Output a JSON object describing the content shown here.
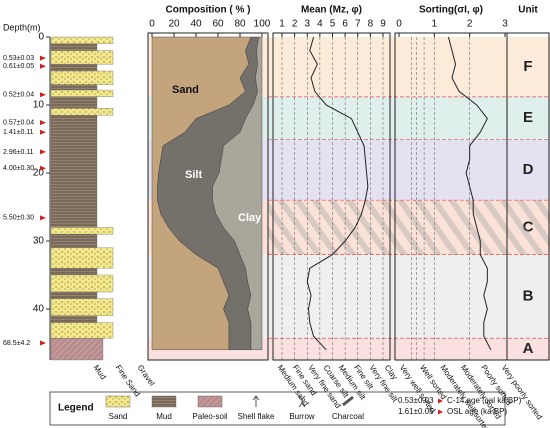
{
  "depth_axis": {
    "label": "Depth(m)",
    "lim": [
      0,
      47.5
    ],
    "ticks": [
      0,
      10,
      20,
      30,
      40
    ]
  },
  "unit_header": "Unit",
  "units": [
    {
      "label": "F",
      "top": 0,
      "bottom": 8.8,
      "color": "#fcebd9"
    },
    {
      "label": "E",
      "top": 8.8,
      "bottom": 15.1,
      "color": "#dff0ec"
    },
    {
      "label": "D",
      "top": 15.1,
      "bottom": 24,
      "color": "#e4e1f1"
    },
    {
      "label": "C",
      "top": 24,
      "bottom": 32,
      "color": "#fbe2d9"
    },
    {
      "label": "B",
      "top": 32,
      "bottom": 44.3,
      "color": "#efefef"
    },
    {
      "label": "A",
      "top": 44.3,
      "bottom": 47.5,
      "color": "#fbe0e0"
    }
  ],
  "lithology": {
    "scale_labels": [
      "Mud",
      "Fine Sand",
      "Gravel"
    ],
    "layers": [
      {
        "type": "Sand",
        "top": 0,
        "bottom": 1
      },
      {
        "type": "Mud",
        "top": 1,
        "bottom": 2
      },
      {
        "type": "Sand",
        "top": 2,
        "bottom": 4
      },
      {
        "type": "Mud",
        "top": 4,
        "bottom": 5
      },
      {
        "type": "Sand",
        "top": 5,
        "bottom": 7
      },
      {
        "type": "Mud",
        "top": 7,
        "bottom": 7.8
      },
      {
        "type": "Sand",
        "top": 7.8,
        "bottom": 8.8
      },
      {
        "type": "Mud",
        "top": 8.8,
        "bottom": 10.5
      },
      {
        "type": "Sand",
        "top": 10.5,
        "bottom": 11.5
      },
      {
        "type": "Mud",
        "top": 11.5,
        "bottom": 28
      },
      {
        "type": "Sand",
        "top": 28,
        "bottom": 29
      },
      {
        "type": "Mud",
        "top": 29,
        "bottom": 31
      },
      {
        "type": "Sand",
        "top": 31,
        "bottom": 34
      },
      {
        "type": "Mud",
        "top": 34,
        "bottom": 35
      },
      {
        "type": "Sand",
        "top": 35,
        "bottom": 37.5
      },
      {
        "type": "Mud",
        "top": 37.5,
        "bottom": 38.5
      },
      {
        "type": "Sand",
        "top": 38.5,
        "bottom": 41
      },
      {
        "type": "Mud",
        "top": 41,
        "bottom": 42
      },
      {
        "type": "Sand",
        "top": 42,
        "bottom": 44.3
      },
      {
        "type": "Paleo-soil",
        "top": 44.3,
        "bottom": 47.5
      }
    ]
  },
  "ages": [
    {
      "label": "0.53±0.03",
      "depth": 3.1
    },
    {
      "label": "0.61±0.05",
      "depth": 4.3
    },
    {
      "label": "0.52±0.04",
      "depth": 8.5
    },
    {
      "label": "0.57±0.04",
      "depth": 12.6
    },
    {
      "label": "1.41±0.11",
      "depth": 14
    },
    {
      "label": "2.96±0.11",
      "depth": 16.9
    },
    {
      "label": "4.00±0.30",
      "depth": 19.3
    },
    {
      "label": "5.50±0.30",
      "depth": 26.6
    },
    {
      "label": "68.5±4.2",
      "depth": 45
    }
  ],
  "chart_data": [
    {
      "type": "area",
      "title": "Composition ( % )",
      "xlim": [
        0,
        100
      ],
      "xticks": [
        0,
        20,
        40,
        60,
        80,
        100
      ],
      "depth": [
        0,
        2,
        4,
        6,
        8,
        10,
        12,
        14,
        16,
        18,
        20,
        22,
        24,
        26,
        28,
        30,
        32,
        34,
        36,
        38,
        40,
        42,
        44,
        46
      ],
      "series": [
        {
          "name": "Sand",
          "color": "#c4a47c",
          "values": [
            90,
            85,
            88,
            80,
            85,
            70,
            40,
            30,
            10,
            8,
            6,
            5,
            5,
            8,
            15,
            25,
            40,
            60,
            65,
            70,
            65,
            70,
            70,
            70
          ]
        },
        {
          "name": "Silt",
          "color": "#74706a",
          "values": [
            7,
            10,
            8,
            14,
            11,
            22,
            45,
            50,
            55,
            55,
            55,
            50,
            50,
            50,
            50,
            50,
            40,
            25,
            22,
            20,
            22,
            20,
            20,
            20
          ]
        },
        {
          "name": "Clay",
          "color": "#a9a79c",
          "values": [
            3,
            5,
            4,
            6,
            4,
            8,
            15,
            20,
            35,
            37,
            39,
            45,
            45,
            42,
            35,
            25,
            20,
            15,
            13,
            10,
            13,
            10,
            10,
            10
          ]
        }
      ]
    },
    {
      "type": "line",
      "title": "Mean (Mz, φ)",
      "xlim": [
        1,
        9
      ],
      "xticks": [
        1,
        2,
        3,
        4,
        5,
        6,
        7,
        8,
        9
      ],
      "grid": true,
      "color": "#222",
      "depth": [
        0,
        2,
        4,
        6,
        8,
        10,
        12,
        14,
        16,
        18,
        20,
        22,
        24,
        26,
        28,
        30,
        32,
        34,
        36,
        38,
        40,
        42,
        44,
        46
      ],
      "values": [
        3.5,
        3.2,
        3.8,
        3.3,
        3.6,
        4.5,
        6.5,
        7,
        7.5,
        7.6,
        7.7,
        7.8,
        7.6,
        7.3,
        6.8,
        6,
        5,
        3.2,
        3,
        3.3,
        3.1,
        3.2,
        3.5,
        4.5
      ],
      "class_labels": [
        "Medium sand",
        "Fine sand",
        "Very fine sand",
        "Coarse silt",
        "Medium silt",
        "Fine silt",
        "Very fine silt",
        "Clay"
      ]
    },
    {
      "type": "line",
      "title": "Sorting(σI, φ)",
      "xlim": [
        0,
        3
      ],
      "xticks": [
        0,
        1,
        2,
        3
      ],
      "bounds": [
        0.35,
        0.5,
        0.71,
        1,
        2
      ],
      "color": "#222",
      "depth": [
        0,
        2,
        4,
        6,
        8,
        10,
        12,
        14,
        16,
        18,
        20,
        22,
        24,
        26,
        28,
        30,
        32,
        34,
        36,
        38,
        40,
        42,
        44,
        46
      ],
      "values": [
        1.4,
        1.5,
        1.6,
        1.5,
        1.7,
        2.2,
        2.5,
        2.3,
        2,
        2,
        1.9,
        2,
        2.1,
        2.1,
        2.2,
        2.3,
        2.3,
        2.5,
        2.5,
        2.4,
        2.5,
        2.4,
        2.4,
        2.6
      ],
      "class_labels": [
        "Very well sorted",
        "Well sorted",
        "Moderately well sorted",
        "Moderately sorted",
        "Poorly sorted",
        "Very poorly sorted"
      ]
    }
  ],
  "legend": {
    "title": "Legend",
    "items": [
      "Sand",
      "Mud",
      "Paleo-soil",
      "Shell flake",
      "Burrow",
      "Charcoal"
    ],
    "age_notes": [
      {
        "label": "0.53±0.03",
        "name": "C-14 age (cal ka BP)"
      },
      {
        "label": "1.61±0.05",
        "name": "OSL age (ka BP)"
      }
    ]
  }
}
